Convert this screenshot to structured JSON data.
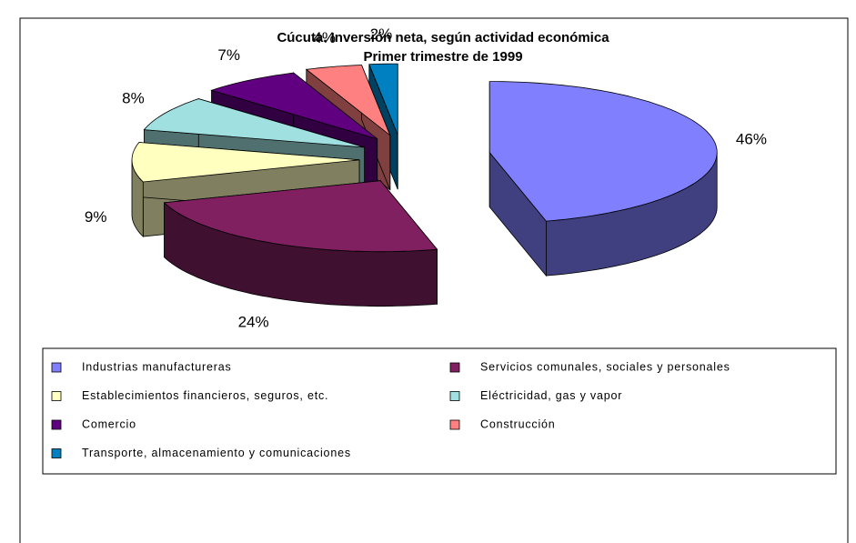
{
  "chart_data": {
    "type": "pie",
    "title": "Cúcuta. Inversión neta, según actividad económica",
    "subtitle": "Primer trimestre de 1999",
    "categories": [
      "Industrias manufactureras",
      "Servicios comunales, sociales y personales",
      "Establecimientos  financieros, seguros, etc.",
      "Eléctricidad, gas y vapor",
      "Comercio",
      "Construcción",
      "Transporte, almacenamiento y comunicaciones"
    ],
    "values": [
      46,
      24,
      9,
      8,
      7,
      4,
      2
    ],
    "value_labels": [
      "46%",
      "24%",
      "9%",
      "8%",
      "7%",
      "4%",
      "2%"
    ],
    "colors": [
      "#8080ff",
      "#802060",
      "#ffffc0",
      "#a0e0e0",
      "#600080",
      "#ff8080",
      "#0080c0"
    ],
    "legend": "bottom"
  }
}
